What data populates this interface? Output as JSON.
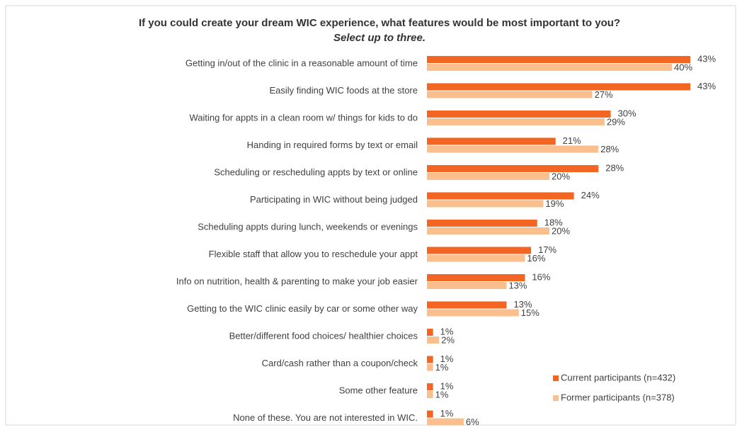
{
  "chart_data": {
    "type": "bar",
    "orientation": "horizontal",
    "title": "If you could create your dream WIC experience, what features would be most important to you?",
    "subtitle": "Select up to three.",
    "categories": [
      "Getting in/out of the clinic in a reasonable amount of time",
      "Easily finding WIC foods at the store",
      "Waiting for appts in a clean room w/ things for kids to do",
      "Handing in required forms by text or email",
      "Scheduling or rescheduling appts by text or online",
      "Participating in WIC without being judged",
      "Scheduling appts during lunch, weekends or evenings",
      "Flexible staff that allow you to reschedule your appt",
      "Info on nutrition, health & parenting to make your job easier",
      "Getting to the WIC clinic easily by car or some other way",
      "Better/different food choices/ healthier choices",
      "Card/cash rather than a coupon/check",
      "Some other feature",
      "None of these. You are not interested in WIC."
    ],
    "series": [
      {
        "name": "Current participants (n=432)",
        "color": "#f26522",
        "values": [
          43,
          43,
          30,
          21,
          28,
          24,
          18,
          17,
          16,
          13,
          1,
          1,
          1,
          1
        ],
        "value_labels": [
          "43%",
          "43%",
          "30%",
          "21%",
          "28%",
          "24%",
          "18%",
          "17%",
          "16%",
          "13%",
          "1%",
          "1%",
          "1%",
          "1%"
        ]
      },
      {
        "name": "Former participants (n=378)",
        "color": "#fbbf8e",
        "values": [
          40,
          27,
          29,
          28,
          20,
          19,
          20,
          16,
          13,
          15,
          2,
          1,
          1,
          6
        ],
        "value_labels": [
          "40%",
          "27%",
          "29%",
          "28%",
          "20%",
          "19%",
          "20%",
          "16%",
          "13%",
          "15%",
          "2%",
          "1%",
          "1%",
          "6%"
        ]
      }
    ],
    "legend": "lower right"
  }
}
